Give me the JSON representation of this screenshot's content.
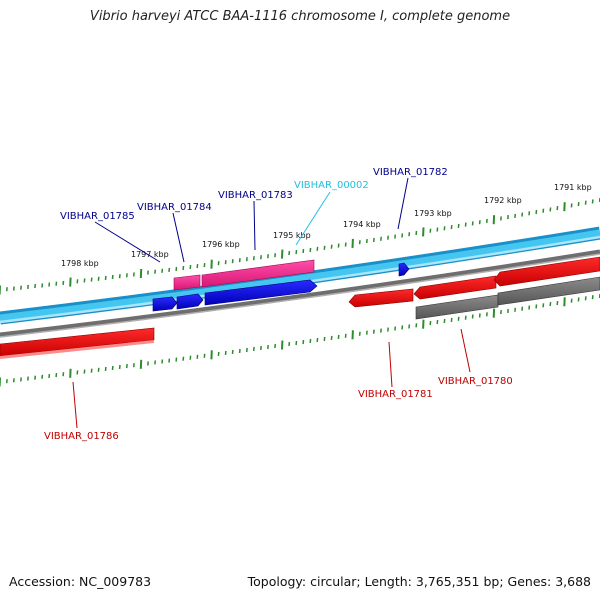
{
  "title": "Vibrio harveyi ATCC BAA-1116 chromosome I, complete genome",
  "footer": {
    "accession": "Accession: NC_009783",
    "summary": "Topology: circular; Length: 3,765,351 bp; Genes: 3,688"
  },
  "colors": {
    "forward_backbone": "#3ab7e6",
    "reverse_backbone": "#8a8a8a",
    "tick_marks": "#2e8b2e",
    "forward_cds": "#0000dd",
    "pseudo": "#ee2288",
    "reverse_cds": "#e60000",
    "gray_feature": "#707070",
    "label_blue": "#00008b",
    "label_cyan": "#21c0e0",
    "label_red": "#c00000"
  },
  "kbp_labels": [
    "1791 kbp",
    "1792 kbp",
    "1793 kbp",
    "1794 kbp",
    "1795 kbp",
    "1796 kbp",
    "1797 kbp",
    "1798 kbp"
  ],
  "genes": [
    {
      "name": "VIBHAR_01785",
      "color": "#00008b"
    },
    {
      "name": "VIBHAR_01784",
      "color": "#00008b"
    },
    {
      "name": "VIBHAR_01783",
      "color": "#00008b"
    },
    {
      "name": "VIBHAR_00002",
      "color": "#21c0e0"
    },
    {
      "name": "VIBHAR_01782",
      "color": "#00008b"
    },
    {
      "name": "VIBHAR_01781",
      "color": "#c00000"
    },
    {
      "name": "VIBHAR_01780",
      "color": "#c00000"
    },
    {
      "name": "VIBHAR_01786",
      "color": "#c00000"
    }
  ]
}
